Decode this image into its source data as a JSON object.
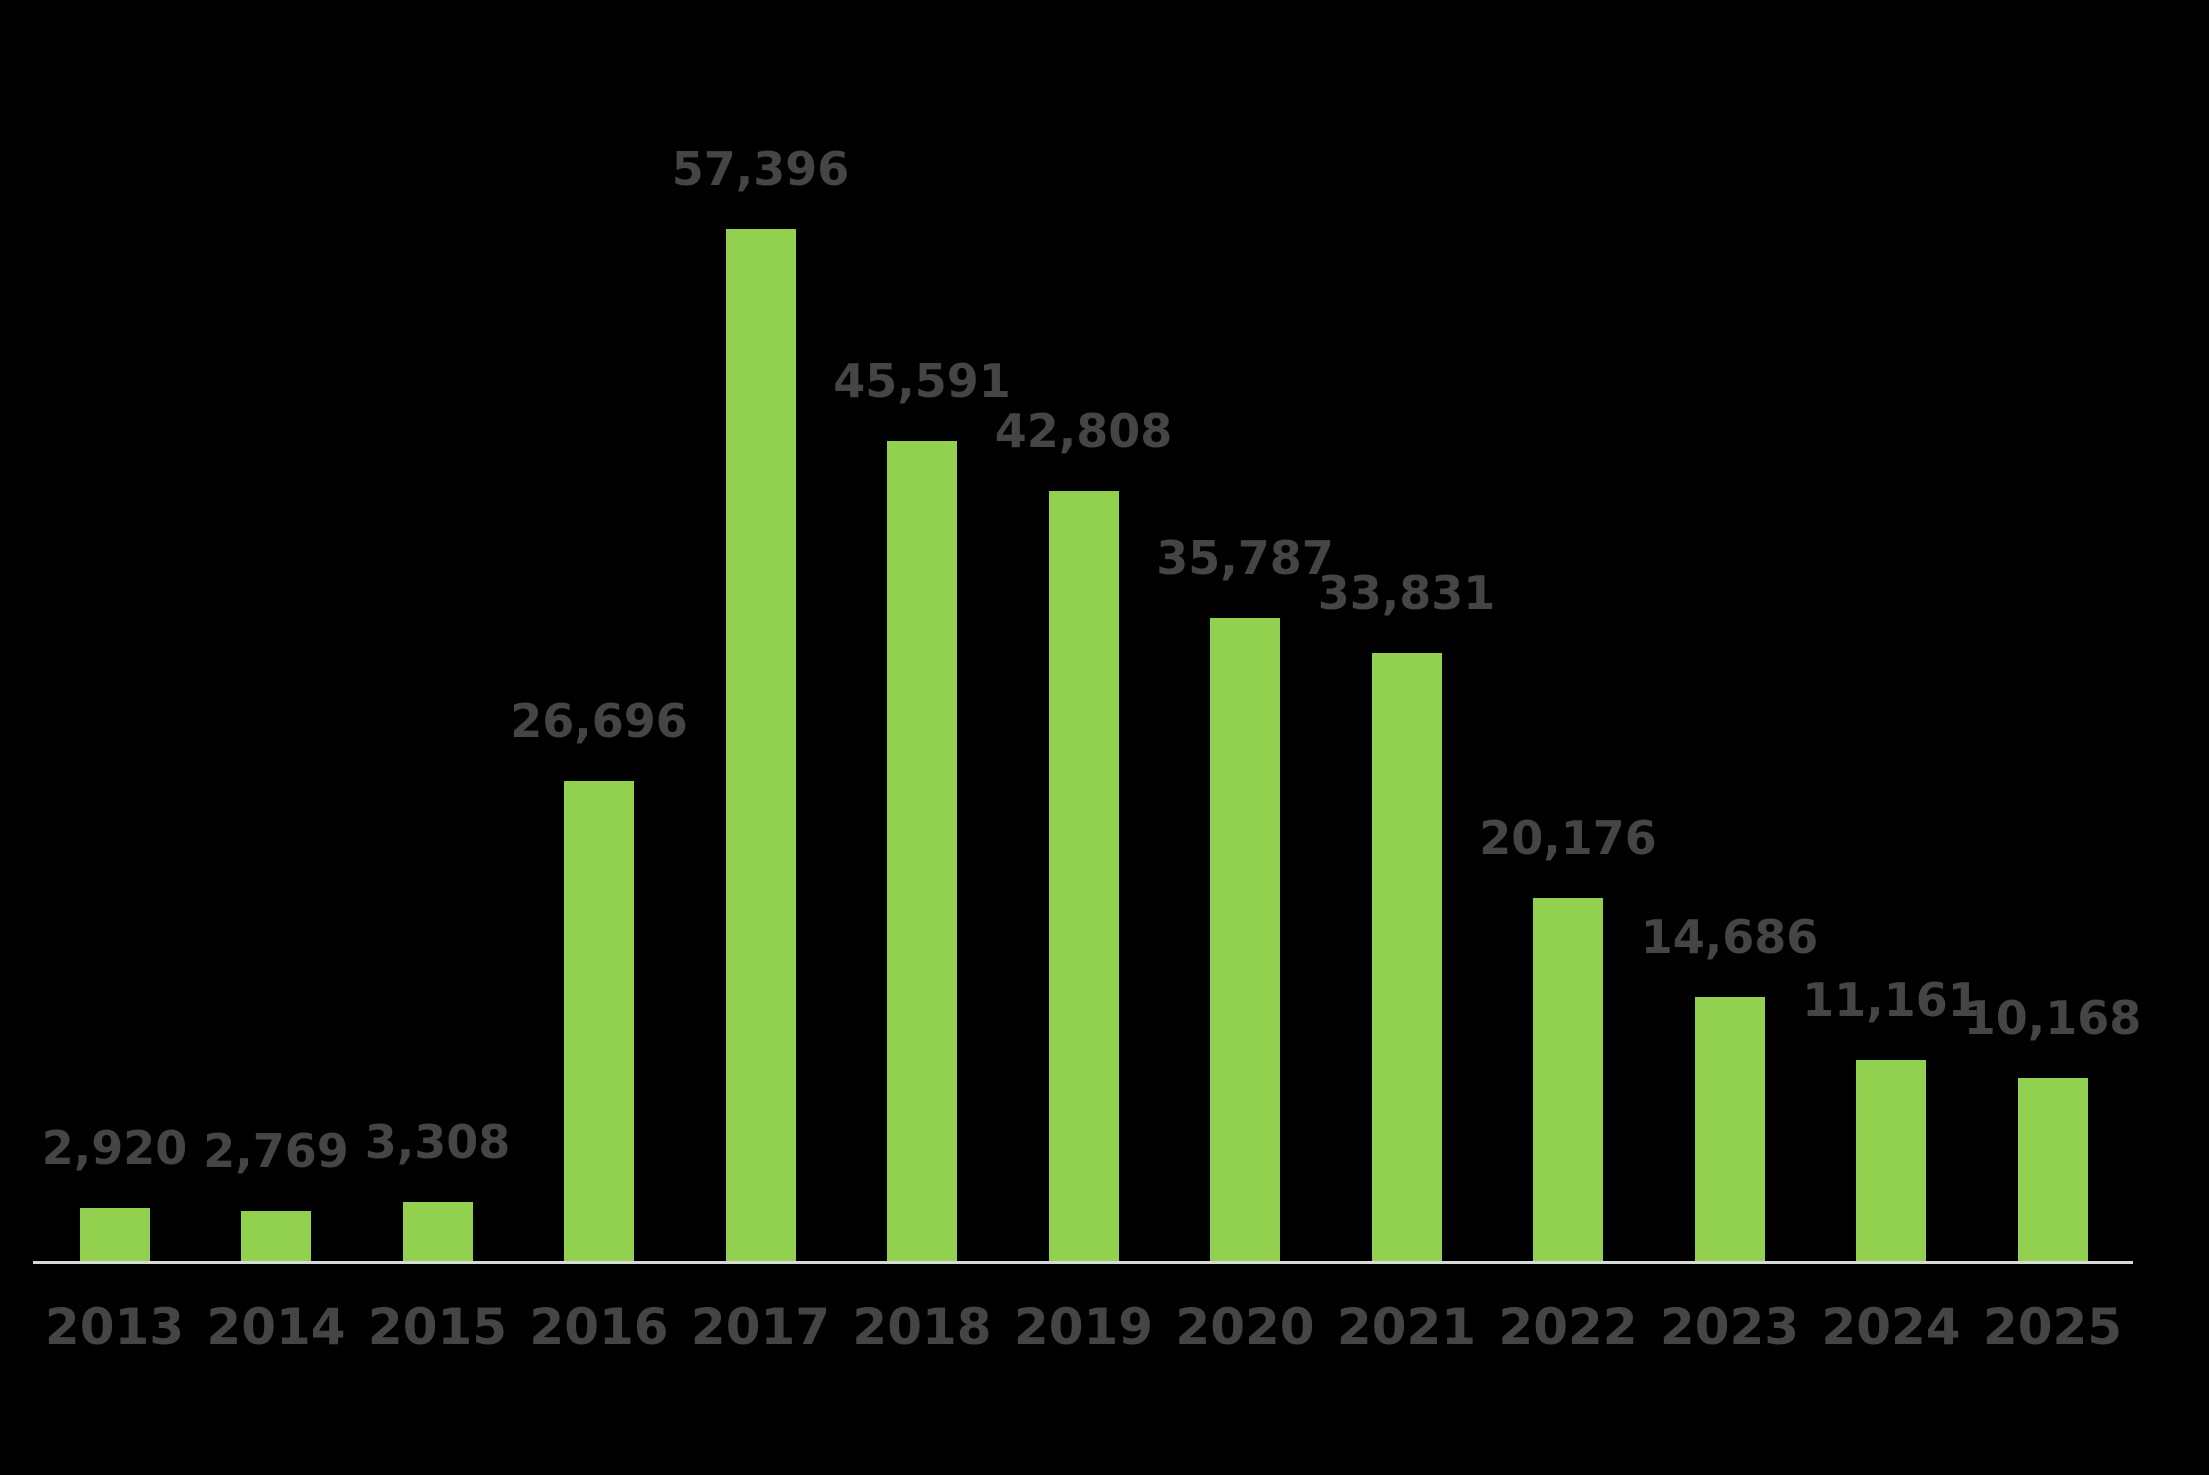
{
  "chart_data": {
    "type": "bar",
    "title": "",
    "xlabel": "",
    "ylabel": "",
    "categories": [
      "2013",
      "2014",
      "2015",
      "2016",
      "2017",
      "2018",
      "2019",
      "2020",
      "2021",
      "2022",
      "2023",
      "2024",
      "2025"
    ],
    "values": [
      2920,
      2769,
      3308,
      26696,
      57396,
      45591,
      42808,
      35787,
      33831,
      20176,
      14686,
      11161,
      10168
    ],
    "value_labels": [
      "2,920",
      "2,769",
      "3,308",
      "26,696",
      "57,396",
      "45,591",
      "42,808",
      "35,787",
      "33,831",
      "20,176",
      "14,686",
      "11,161",
      "10,168"
    ],
    "ylim": [
      0,
      60000
    ],
    "grid": false,
    "legend": null,
    "data_labels_shown": true,
    "colors": {
      "background": "#000000",
      "bar_fill": "#92D050",
      "data_label_text": "#454545",
      "axis_tick_text": "#454545",
      "axis_line": "#D9D9D9"
    }
  }
}
